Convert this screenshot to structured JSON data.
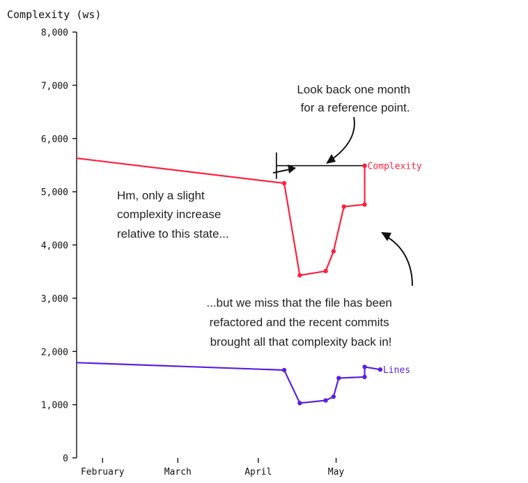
{
  "chart_data": {
    "type": "line",
    "ylabel": "Complexity (ws)",
    "ylim": [
      0,
      8000
    ],
    "y_ticks": [
      {
        "value": 0,
        "label": "0"
      },
      {
        "value": 1000,
        "label": "1,000"
      },
      {
        "value": 2000,
        "label": "2,000"
      },
      {
        "value": 3000,
        "label": "3,000"
      },
      {
        "value": 4000,
        "label": "4,000"
      },
      {
        "value": 5000,
        "label": "5,000"
      },
      {
        "value": 6000,
        "label": "6,000"
      },
      {
        "value": 7000,
        "label": "7,000"
      },
      {
        "value": 8000,
        "label": "8,000"
      }
    ],
    "xlim": [
      "2020-01-22",
      "2020-06-01"
    ],
    "x_ticks": [
      {
        "date": "2020-02-01",
        "label": "February"
      },
      {
        "date": "2020-03-01",
        "label": "March"
      },
      {
        "date": "2020-04-01",
        "label": "April"
      },
      {
        "date": "2020-05-01",
        "label": "May"
      }
    ],
    "series": [
      {
        "name": "Complexity",
        "color": "#ff1f3d",
        "points": [
          {
            "x": "2020-01-22",
            "y": 5630
          },
          {
            "x": "2020-04-11",
            "y": 5160
          },
          {
            "x": "2020-04-17",
            "y": 3430
          },
          {
            "x": "2020-04-27",
            "y": 3510
          },
          {
            "x": "2020-04-30",
            "y": 3880
          },
          {
            "x": "2020-05-04",
            "y": 4720
          },
          {
            "x": "2020-05-12",
            "y": 4760
          },
          {
            "x": "2020-05-12",
            "y": 5490
          }
        ]
      },
      {
        "name": "Lines",
        "color": "#5a1fe0",
        "points": [
          {
            "x": "2020-01-22",
            "y": 1790
          },
          {
            "x": "2020-04-11",
            "y": 1650
          },
          {
            "x": "2020-04-17",
            "y": 1030
          },
          {
            "x": "2020-04-27",
            "y": 1080
          },
          {
            "x": "2020-04-30",
            "y": 1150
          },
          {
            "x": "2020-05-02",
            "y": 1500
          },
          {
            "x": "2020-05-12",
            "y": 1520
          },
          {
            "x": "2020-05-12",
            "y": 1710
          },
          {
            "x": "2020-05-18",
            "y": 1660
          }
        ]
      }
    ],
    "reference_line": {
      "from": "2020-04-08",
      "to": "2020-05-12",
      "y": 5490,
      "color": "#111111"
    },
    "annotations": [
      {
        "lines": [
          "Look back one month",
          "for a reference point."
        ]
      },
      {
        "lines": [
          "Hm, only a slight",
          "complexity increase",
          "relative to this state..."
        ]
      },
      {
        "lines": [
          "...but we miss that the file has been",
          "refactored and the recent commits",
          "brought all that complexity back in!"
        ]
      }
    ]
  }
}
